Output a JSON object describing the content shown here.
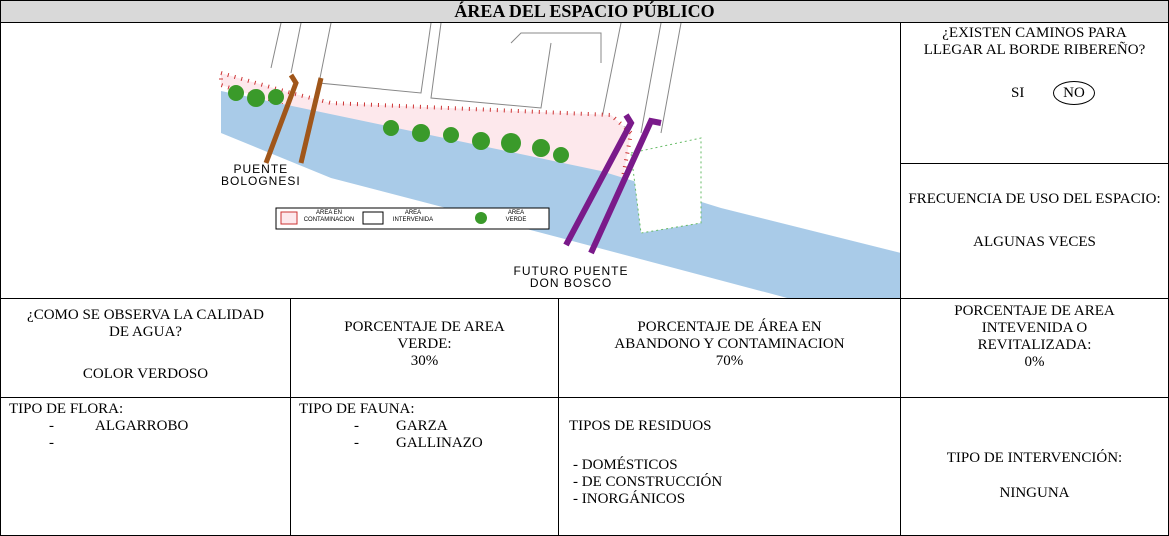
{
  "title": "ÁREA DEL ESPACIO PÚBLICO",
  "map": {
    "bridge_1": [
      "PUENTE",
      "BOLOGNESI"
    ],
    "bridge_2": [
      "FUTURO PUENTE",
      "DON BOSCO"
    ],
    "legend": [
      [
        "AREA EN",
        "CONTAMINACION"
      ],
      [
        "AREA",
        "INTERVENIDA"
      ],
      [
        "AREA",
        "VERDE"
      ]
    ]
  },
  "paths": {
    "question": "¿EXISTEN CAMINOS PARA LLEGAR AL BORDE RIBEREÑO?",
    "yes": "SI",
    "no": "NO"
  },
  "frequency": {
    "label": "FRECUENCIA DE USO DEL ESPACIO:",
    "value": "ALGUNAS VECES"
  },
  "water": {
    "label": "¿COMO SE OBSERVA LA CALIDAD DE AGUA?",
    "value": "COLOR VERDOSO"
  },
  "green": {
    "label": "PORCENTAJE DE AREA VERDE:",
    "value": "30%"
  },
  "abandon": {
    "label": "PORCENTAJE DE ÁREA EN ABANDONO Y CONTAMINACION",
    "value": "70%"
  },
  "intervened": {
    "label": "PORCENTAJE DE AREA INTEVENIDA O REVITALIZADA:",
    "value": "0%"
  },
  "flora": {
    "label": "TIPO DE FLORA:",
    "items": [
      "ALGARROBO"
    ]
  },
  "fauna": {
    "label": "TIPO DE FAUNA:",
    "items": [
      "GARZA",
      "GALLINAZO"
    ]
  },
  "residues": {
    "label": "TIPOS DE RESIDUOS",
    "items": [
      "DOMÉSTICOS",
      "DE CONSTRUCCIÓN",
      "INORGÁNICOS"
    ]
  },
  "intervention": {
    "label": "TIPO DE INTERVENCIÓN:",
    "value": "NINGUNA"
  }
}
